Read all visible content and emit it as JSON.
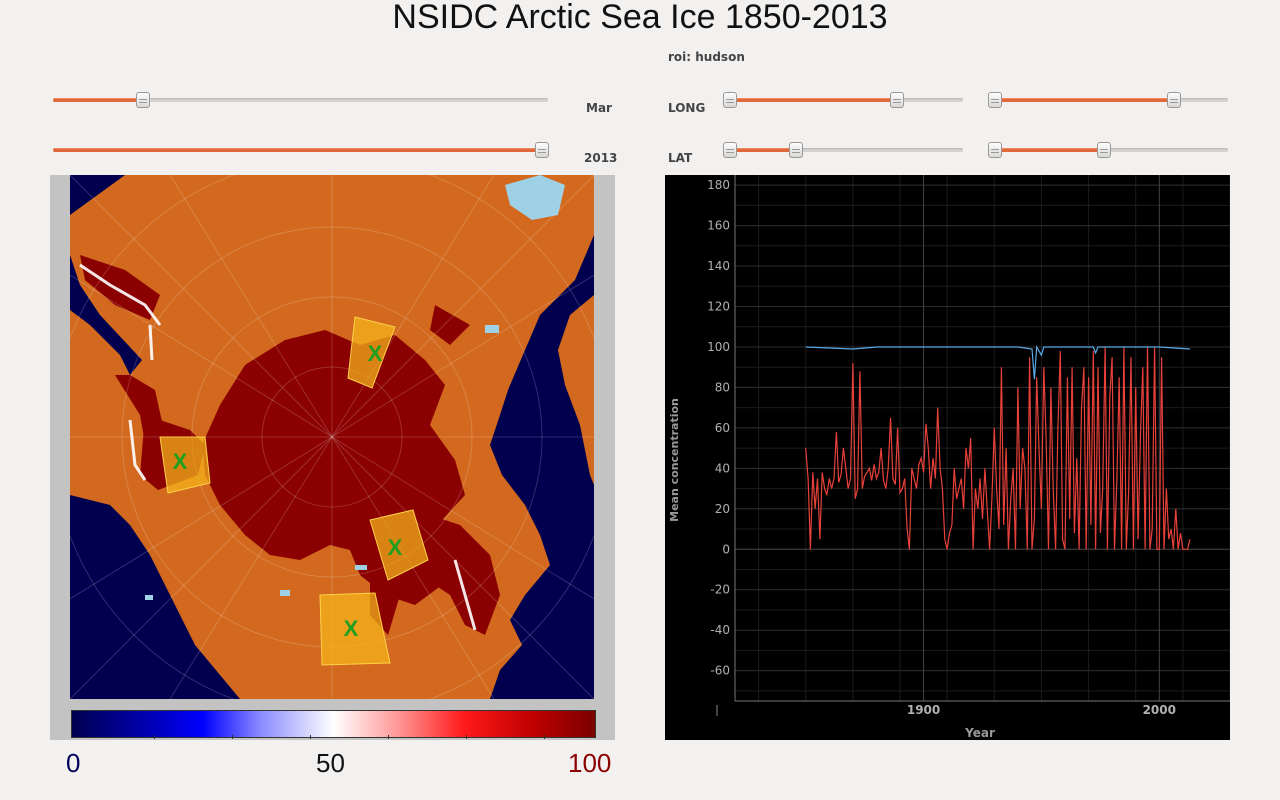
{
  "title": "NSIDC Arctic Sea Ice 1850-2013",
  "roi": "roi: hudson",
  "controls": {
    "month": {
      "label": "Mar",
      "value": 0.18
    },
    "year": {
      "label": "2013",
      "value": 1.0
    },
    "long_label": "LONG",
    "lat_label": "LAT",
    "long_ranges": [
      {
        "min": 0.0,
        "max": 0.72
      },
      {
        "min": 0.0,
        "max": 0.77
      }
    ],
    "lat_ranges": [
      {
        "min": 0.0,
        "max": 0.3
      },
      {
        "min": 0.0,
        "max": 0.48
      }
    ]
  },
  "map": {
    "roi_marker": "X",
    "colors": {
      "ocean": "#00004f",
      "land": "#d2691e",
      "ice": "#8b0000",
      "lake": "#9ed0e6",
      "roi_box": "#f5b61c",
      "roi_mark": "#1f9e1f"
    }
  },
  "colorbar": {
    "min_label": "0",
    "mid_label": "50",
    "max_label": "100",
    "min_color": "#00005a",
    "max_color": "#8b0000"
  },
  "chart_data": {
    "type": "line",
    "xlabel": "Year",
    "ylabel": "Mean concentration",
    "xlim": [
      1820,
      2030
    ],
    "ylim": [
      -75,
      185
    ],
    "xticks": [
      1900,
      2000
    ],
    "yticks": [
      180,
      160,
      140,
      120,
      100,
      80,
      60,
      40,
      20,
      0,
      -20,
      -40,
      -60
    ],
    "grid": true,
    "series": [
      {
        "color": "#5aa9e6",
        "x": [
          1850,
          1870,
          1880,
          1900,
          1940,
          1946,
          1947,
          1948,
          1950,
          1951,
          1952,
          1960,
          1972,
          1973,
          1974,
          1980,
          2000,
          2013
        ],
        "y": [
          100,
          99,
          100,
          100,
          100,
          99,
          84,
          100,
          96,
          100,
          100,
          100,
          100,
          97,
          100,
          100,
          100,
          99
        ]
      },
      {
        "color": "#e8413a",
        "x": [
          1850,
          1851,
          1852,
          1853,
          1854,
          1855,
          1856,
          1857,
          1858,
          1859,
          1860,
          1861,
          1862,
          1863,
          1864,
          1865,
          1866,
          1867,
          1868,
          1869,
          1870,
          1871,
          1872,
          1873,
          1874,
          1875,
          1876,
          1877,
          1878,
          1879,
          1880,
          1881,
          1882,
          1883,
          1884,
          1885,
          1886,
          1887,
          1888,
          1889,
          1890,
          1891,
          1892,
          1893,
          1894,
          1895,
          1896,
          1897,
          1898,
          1899,
          1900,
          1901,
          1902,
          1903,
          1904,
          1905,
          1906,
          1907,
          1908,
          1909,
          1910,
          1911,
          1912,
          1913,
          1914,
          1915,
          1916,
          1917,
          1918,
          1919,
          1920,
          1921,
          1922,
          1923,
          1924,
          1925,
          1926,
          1927,
          1928,
          1929,
          1930,
          1931,
          1932,
          1933,
          1934,
          1935,
          1936,
          1937,
          1938,
          1939,
          1940,
          1941,
          1942,
          1943,
          1944,
          1945,
          1946,
          1947,
          1948,
          1949,
          1950,
          1951,
          1952,
          1953,
          1954,
          1955,
          1956,
          1957,
          1958,
          1959,
          1960,
          1961,
          1962,
          1963,
          1964,
          1965,
          1966,
          1967,
          1968,
          1969,
          1970,
          1971,
          1972,
          1973,
          1974,
          1975,
          1976,
          1977,
          1978,
          1979,
          1980,
          1981,
          1982,
          1983,
          1984,
          1985,
          1986,
          1987,
          1988,
          1989,
          1990,
          1991,
          1992,
          1993,
          1994,
          1995,
          1996,
          1997,
          1998,
          1999,
          2000,
          2001,
          2002,
          2003,
          2004,
          2005,
          2006,
          2007,
          2008,
          2009,
          2010,
          2011,
          2012,
          2013
        ],
        "y": [
          50,
          35,
          0,
          38,
          20,
          35,
          5,
          38,
          30,
          27,
          35,
          30,
          35,
          58,
          33,
          37,
          50,
          40,
          30,
          35,
          92,
          25,
          30,
          88,
          30,
          36,
          38,
          40,
          34,
          42,
          35,
          38,
          50,
          34,
          30,
          40,
          65,
          35,
          32,
          60,
          28,
          30,
          35,
          10,
          0,
          40,
          35,
          30,
          42,
          45,
          38,
          62,
          50,
          30,
          45,
          35,
          70,
          40,
          30,
          5,
          0,
          8,
          12,
          40,
          25,
          30,
          35,
          20,
          50,
          40,
          55,
          0,
          30,
          20,
          35,
          15,
          40,
          20,
          0,
          25,
          60,
          30,
          10,
          90,
          12,
          50,
          0,
          25,
          40,
          0,
          80,
          20,
          50,
          40,
          0,
          95,
          0,
          15,
          85,
          48,
          20,
          90,
          55,
          0,
          80,
          30,
          0,
          60,
          98,
          5,
          0,
          85,
          15,
          90,
          8,
          45,
          0,
          70,
          90,
          0,
          85,
          12,
          98,
          0,
          90,
          8,
          30,
          100,
          0,
          75,
          95,
          0,
          35,
          85,
          0,
          100,
          0,
          28,
          95,
          0,
          80,
          5,
          55,
          90,
          0,
          100,
          0,
          10,
          100,
          0,
          0,
          95,
          0,
          30,
          5,
          10,
          0,
          20,
          0,
          8,
          0,
          0,
          0,
          5
        ]
      }
    ]
  }
}
